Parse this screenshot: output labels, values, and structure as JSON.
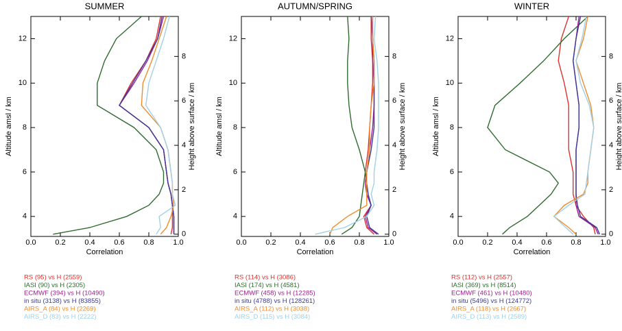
{
  "chart_data": [
    {
      "type": "line",
      "title": "SUMMER",
      "xlabel": "Correlation",
      "ylabel": "Altitude amsl / km",
      "y2label": "Height above surface / km",
      "xlim": [
        0,
        1
      ],
      "xticks": [
        {
          "value": 0,
          "label": "0.0"
        },
        {
          "value": 0.2,
          "label": "0.2"
        },
        {
          "value": 0.4,
          "label": "0.4"
        },
        {
          "value": 0.6,
          "label": "0.6"
        },
        {
          "value": 0.8,
          "label": "0.8"
        },
        {
          "value": 1,
          "label": "1.0"
        }
      ],
      "ylim": [
        3.1,
        13
      ],
      "yticks": [
        4,
        6,
        8,
        10,
        12
      ],
      "y2lim": [
        -0.1,
        9.8
      ],
      "y2ticks": [
        0,
        2,
        4,
        6,
        8
      ],
      "y": [
        3.2,
        3.5,
        4,
        4.5,
        5,
        5.5,
        6,
        7,
        8,
        9,
        10,
        11,
        12,
        13
      ],
      "series": [
        {
          "name": "RS (95) vs H (2559)",
          "color": "#e0302a",
          "values": [
            0.95,
            0.96,
            0.96,
            0.96,
            0.95,
            0.93,
            0.92,
            0.9,
            0.8,
            0.6,
            0.68,
            0.78,
            0.85,
            0.88
          ]
        },
        {
          "name": "IASI (90) vs H (2305)",
          "color": "#2e6b2e",
          "values": [
            0.15,
            0.4,
            0.65,
            0.8,
            0.87,
            0.9,
            0.9,
            0.85,
            0.7,
            0.45,
            0.45,
            0.5,
            0.58,
            0.75
          ]
        },
        {
          "name": "ECMWF (394) vs H (10490)",
          "color": "#a0208f",
          "values": [
            0.97,
            0.97,
            0.97,
            0.96,
            0.95,
            0.93,
            0.92,
            0.9,
            0.8,
            0.6,
            0.7,
            0.79,
            0.86,
            0.9
          ]
        },
        {
          "name": "in situ (3138) vs H (83855)",
          "color": "#3a3a9a",
          "values": [
            0.97,
            0.97,
            0.97,
            0.96,
            0.95,
            0.93,
            0.92,
            0.9,
            0.8,
            0.6,
            0.69,
            0.78,
            0.86,
            0.89
          ]
        },
        {
          "name": "AIRS_A (84) vs H (2269)",
          "color": "#f08c28",
          "values": [
            0.88,
            0.92,
            0.95,
            0.97,
            0.96,
            0.96,
            0.95,
            0.93,
            0.88,
            0.75,
            0.76,
            0.82,
            0.87,
            0.92
          ]
        },
        {
          "name": "AIRS_D (83) vs H (2222)",
          "color": "#9fd0e8",
          "values": [
            0.85,
            0.88,
            0.87,
            0.98,
            0.96,
            0.96,
            0.95,
            0.93,
            0.88,
            0.78,
            0.8,
            0.85,
            0.9,
            0.94
          ]
        }
      ]
    },
    {
      "type": "line",
      "title": "AUTUMN/SPRING",
      "xlabel": "Correlation",
      "ylabel": "Altitude amsl / km",
      "y2label": "Height above surface / km",
      "xlim": [
        0,
        1
      ],
      "xticks": [
        {
          "value": 0,
          "label": "0.0"
        },
        {
          "value": 0.2,
          "label": "0.2"
        },
        {
          "value": 0.4,
          "label": "0.4"
        },
        {
          "value": 0.6,
          "label": "0.6"
        },
        {
          "value": 0.8,
          "label": "0.8"
        },
        {
          "value": 1,
          "label": "1.0"
        }
      ],
      "ylim": [
        3.1,
        13
      ],
      "yticks": [
        4,
        6,
        8,
        10,
        12
      ],
      "y2lim": [
        -0.1,
        9.8
      ],
      "y2ticks": [
        0,
        2,
        4,
        6,
        8
      ],
      "y": [
        3.2,
        3.5,
        4,
        4.5,
        5,
        5.5,
        6,
        7,
        8,
        9,
        10,
        11,
        12,
        13
      ],
      "series": [
        {
          "name": "RS (114) vs H (3086)",
          "color": "#e0302a",
          "values": [
            0.9,
            0.85,
            0.83,
            0.88,
            0.85,
            0.85,
            0.84,
            0.86,
            0.87,
            0.88,
            0.89,
            0.89,
            0.88,
            0.88
          ]
        },
        {
          "name": "IASI (174) vs H (4581)",
          "color": "#2e6b2e",
          "values": [
            0.68,
            0.75,
            0.8,
            0.81,
            0.82,
            0.83,
            0.84,
            0.8,
            0.75,
            0.73,
            0.72,
            0.72,
            0.73,
            0.72
          ]
        },
        {
          "name": "ECMWF (458) vs H (12285)",
          "color": "#a0208f",
          "values": [
            0.92,
            0.86,
            0.84,
            0.88,
            0.85,
            0.84,
            0.85,
            0.87,
            0.89,
            0.9,
            0.9,
            0.89,
            0.89,
            0.88
          ]
        },
        {
          "name": "in situ (4788) vs H (128261)",
          "color": "#3a3a9a",
          "values": [
            0.93,
            0.87,
            0.85,
            0.88,
            0.86,
            0.85,
            0.85,
            0.88,
            0.9,
            0.9,
            0.9,
            0.9,
            0.89,
            0.89
          ]
        },
        {
          "name": "AIRS_A (112) vs H (3038)",
          "color": "#f08c28",
          "values": [
            0.6,
            0.62,
            0.72,
            0.85,
            0.85,
            0.85,
            0.85,
            0.87,
            0.87,
            0.88,
            0.9,
            0.9,
            0.89,
            0.89
          ]
        },
        {
          "name": "AIRS_D (115) vs H (3084)",
          "color": "#9fd0e8",
          "values": [
            0.5,
            0.7,
            0.85,
            0.9,
            0.88,
            0.9,
            0.9,
            0.92,
            0.93,
            0.93,
            0.93,
            0.92,
            0.9,
            0.91
          ]
        }
      ]
    },
    {
      "type": "line",
      "title": "WINTER",
      "xlabel": "Correlation",
      "ylabel": "Altitude amsl / km",
      "y2label": "Height above surface / km",
      "xlim": [
        0,
        1
      ],
      "xticks": [
        {
          "value": 0,
          "label": "0.0"
        },
        {
          "value": 0.2,
          "label": "0.2"
        },
        {
          "value": 0.4,
          "label": "0.4"
        },
        {
          "value": 0.6,
          "label": "0.6"
        },
        {
          "value": 0.8,
          "label": "0.8"
        },
        {
          "value": 1,
          "label": "1.0"
        }
      ],
      "ylim": [
        3.1,
        13
      ],
      "yticks": [
        4,
        6,
        8,
        10,
        12
      ],
      "y2lim": [
        -0.1,
        9.8
      ],
      "y2ticks": [
        0,
        2,
        4,
        6,
        8
      ],
      "y": [
        3.2,
        3.5,
        4,
        4.5,
        5,
        5.5,
        6,
        7,
        8,
        9,
        10,
        11,
        12,
        13
      ],
      "series": [
        {
          "name": "RS (112) vs H (2557)",
          "color": "#e0302a",
          "values": [
            0.93,
            0.92,
            0.85,
            0.8,
            0.78,
            0.78,
            0.78,
            0.75,
            0.75,
            0.75,
            0.72,
            0.68,
            0.7,
            0.75
          ]
        },
        {
          "name": "IASI (369) vs H (8514)",
          "color": "#2e6b2e",
          "values": [
            0.3,
            0.35,
            0.47,
            0.55,
            0.63,
            0.68,
            0.62,
            0.32,
            0.2,
            0.25,
            0.42,
            0.58,
            0.72,
            0.88
          ]
        },
        {
          "name": "ECMWF (461) vs H (10480)",
          "color": "#a0208f",
          "values": [
            0.95,
            0.93,
            0.82,
            0.8,
            0.8,
            0.8,
            0.8,
            0.8,
            0.82,
            0.82,
            0.8,
            0.78,
            0.8,
            0.82
          ]
        },
        {
          "name": "in situ (5496) vs H (124772)",
          "color": "#3a3a9a",
          "values": [
            0.96,
            0.94,
            0.83,
            0.81,
            0.8,
            0.8,
            0.8,
            0.8,
            0.82,
            0.82,
            0.8,
            0.78,
            0.8,
            0.83
          ]
        },
        {
          "name": "AIRS_A (118) vs H (2667)",
          "color": "#f08c28",
          "values": [
            0.8,
            0.75,
            0.65,
            0.72,
            0.85,
            0.88,
            0.88,
            0.9,
            0.92,
            0.9,
            0.85,
            0.8,
            0.85,
            0.88
          ]
        },
        {
          "name": "AIRS_D (113) vs H (2589)",
          "color": "#9fd0e8",
          "values": [
            0.78,
            0.73,
            0.65,
            0.75,
            0.86,
            0.87,
            0.88,
            0.9,
            0.92,
            0.89,
            0.83,
            0.8,
            0.84,
            0.87
          ]
        }
      ]
    }
  ]
}
